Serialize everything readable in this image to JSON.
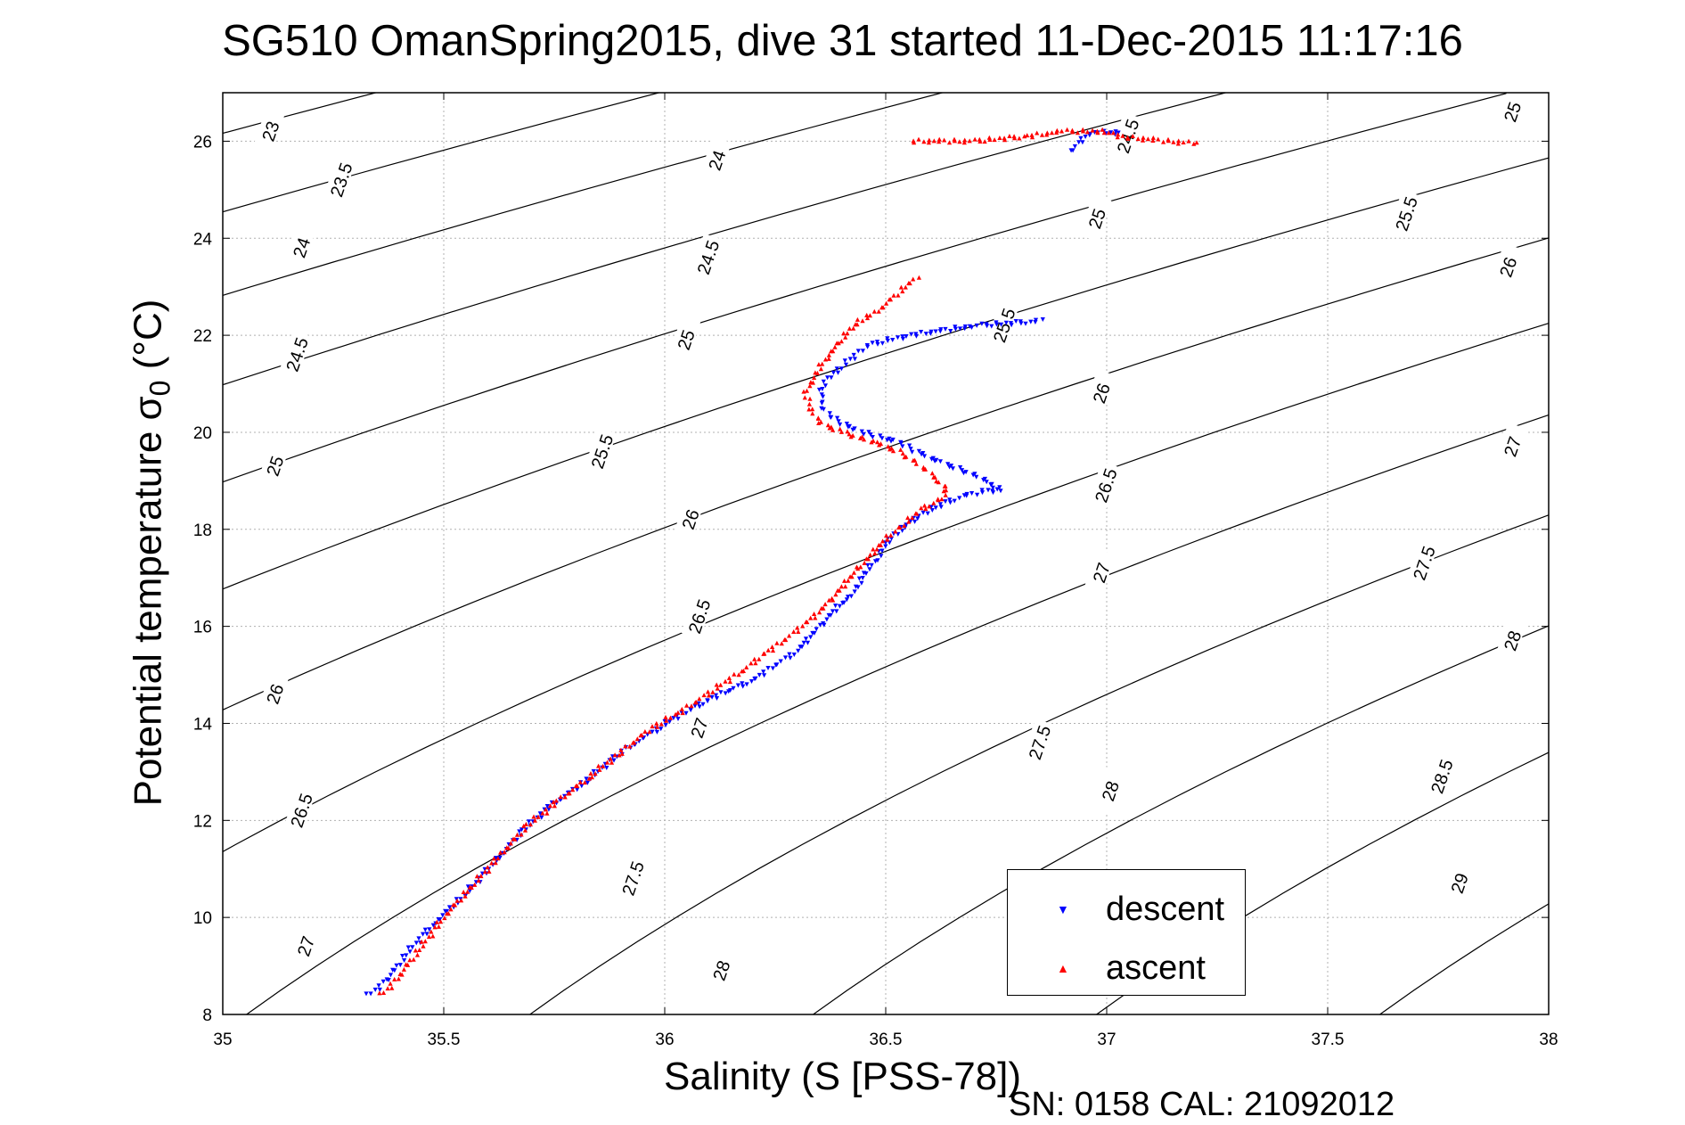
{
  "chart_data": {
    "type": "scatter",
    "title": "SG510 OmanSpring2015, dive 31 started 11-Dec-2015 11:17:16",
    "xlabel": "Salinity (S [PSS-78])",
    "ylabel": "Potential temperature σ0 (°C)",
    "xlim": [
      35,
      38
    ],
    "ylim": [
      8,
      27
    ],
    "x_ticks": [
      "35",
      "35.5",
      "36",
      "36.5",
      "37",
      "37.5",
      "38"
    ],
    "y_ticks": [
      "8",
      "10",
      "12",
      "14",
      "16",
      "18",
      "20",
      "22",
      "24",
      "26"
    ],
    "grid": true,
    "legend_position": "bottom-right",
    "footnote": "SN: 0158  CAL: 21092012",
    "density_contours": [
      23,
      23.5,
      24,
      24.5,
      25,
      25.5,
      26,
      26.5,
      27,
      27.5,
      28,
      28.5,
      29
    ],
    "contour_labels": [
      {
        "text": "23",
        "x": 35.11,
        "y": 26.2
      },
      {
        "text": "23.5",
        "x": 35.27,
        "y": 25.2
      },
      {
        "text": "24",
        "x": 35.18,
        "y": 23.8
      },
      {
        "text": "24.5",
        "x": 35.17,
        "y": 21.6
      },
      {
        "text": "25",
        "x": 35.12,
        "y": 19.3
      },
      {
        "text": "25.5",
        "x": 35.86,
        "y": 19.6
      },
      {
        "text": "26",
        "x": 35.12,
        "y": 14.6
      },
      {
        "text": "26.5",
        "x": 35.18,
        "y": 12.2
      },
      {
        "text": "27",
        "x": 35.19,
        "y": 9.4
      },
      {
        "text": "24",
        "x": 36.12,
        "y": 25.6
      },
      {
        "text": "24.5",
        "x": 36.1,
        "y": 23.6
      },
      {
        "text": "25",
        "x": 36.05,
        "y": 21.9
      },
      {
        "text": "26",
        "x": 36.06,
        "y": 18.2
      },
      {
        "text": "26.5",
        "x": 36.08,
        "y": 16.2
      },
      {
        "text": "27",
        "x": 36.08,
        "y": 13.9
      },
      {
        "text": "27.5",
        "x": 35.93,
        "y": 10.8
      },
      {
        "text": "28",
        "x": 36.13,
        "y": 8.9
      },
      {
        "text": "24.5",
        "x": 37.05,
        "y": 26.1
      },
      {
        "text": "25",
        "x": 36.98,
        "y": 24.4
      },
      {
        "text": "25.5",
        "x": 36.77,
        "y": 22.2
      },
      {
        "text": "26",
        "x": 36.99,
        "y": 20.8
      },
      {
        "text": "26.5",
        "x": 37.0,
        "y": 18.9
      },
      {
        "text": "27",
        "x": 36.99,
        "y": 17.1
      },
      {
        "text": "27.5",
        "x": 36.85,
        "y": 13.6
      },
      {
        "text": "28",
        "x": 37.01,
        "y": 12.6
      },
      {
        "text": "25",
        "x": 37.92,
        "y": 26.6
      },
      {
        "text": "25.5",
        "x": 37.68,
        "y": 24.5
      },
      {
        "text": "26",
        "x": 37.91,
        "y": 23.4
      },
      {
        "text": "27",
        "x": 37.92,
        "y": 19.7
      },
      {
        "text": "27.5",
        "x": 37.72,
        "y": 17.3
      },
      {
        "text": "28",
        "x": 37.92,
        "y": 15.7
      },
      {
        "text": "28.5",
        "x": 37.76,
        "y": 12.9
      },
      {
        "text": "29",
        "x": 37.8,
        "y": 10.7
      }
    ],
    "series": [
      {
        "name": "descent",
        "color": "#0000ff",
        "marker": "triangle-down",
        "x": [
          35.33,
          35.37,
          35.42,
          35.48,
          35.55,
          35.62,
          35.68,
          35.74,
          35.82,
          35.9,
          35.97,
          36.02,
          36.06,
          36.1,
          36.15,
          36.2,
          36.25,
          36.3,
          36.33,
          36.36,
          36.39,
          36.42,
          36.44,
          36.46,
          36.48,
          36.5,
          36.52,
          36.55,
          36.58,
          36.62,
          36.68,
          36.73,
          36.76,
          36.73,
          36.68,
          36.62,
          36.57,
          36.53,
          36.49,
          36.45,
          36.42,
          36.38,
          36.36,
          36.35,
          36.36,
          36.38,
          36.42,
          36.46,
          36.55,
          36.7,
          36.85,
          36.92,
          36.95,
          36.98,
          37.0,
          37.03
        ],
        "y": [
          8.4,
          8.7,
          9.3,
          9.9,
          10.5,
          11.2,
          11.8,
          12.3,
          12.8,
          13.4,
          13.8,
          14.1,
          14.3,
          14.5,
          14.7,
          14.9,
          15.2,
          15.5,
          15.8,
          16.1,
          16.4,
          16.6,
          16.9,
          17.2,
          17.4,
          17.7,
          17.9,
          18.1,
          18.3,
          18.5,
          18.7,
          18.8,
          18.8,
          19.0,
          19.2,
          19.4,
          19.6,
          19.8,
          19.9,
          20.0,
          20.1,
          20.3,
          20.5,
          20.8,
          21.0,
          21.2,
          21.5,
          21.8,
          22.0,
          22.2,
          22.3,
          25.8,
          26.1,
          26.2,
          26.2,
          26.15
        ]
      },
      {
        "name": "ascent",
        "color": "#ff0000",
        "marker": "triangle-up",
        "x": [
          35.36,
          35.4,
          35.45,
          35.5,
          35.57,
          35.63,
          35.69,
          35.76,
          35.83,
          35.9,
          35.97,
          36.03,
          36.08,
          36.13,
          36.18,
          36.22,
          36.27,
          36.31,
          36.35,
          36.38,
          36.41,
          36.44,
          36.47,
          36.5,
          36.54,
          36.58,
          36.62,
          36.64,
          36.62,
          36.58,
          36.53,
          36.47,
          36.4,
          36.35,
          36.33,
          36.32,
          36.33,
          36.35,
          36.37,
          36.4,
          36.42,
          36.44,
          36.47,
          36.57,
          36.56,
          36.7,
          36.82,
          36.9,
          36.96,
          37.0,
          37.02,
          37.2
        ],
        "y": [
          8.4,
          8.8,
          9.4,
          10.0,
          10.7,
          11.3,
          11.9,
          12.4,
          12.9,
          13.4,
          13.9,
          14.2,
          14.5,
          14.8,
          15.1,
          15.4,
          15.7,
          16.0,
          16.3,
          16.6,
          16.9,
          17.2,
          17.5,
          17.8,
          18.1,
          18.4,
          18.6,
          18.8,
          19.0,
          19.3,
          19.6,
          19.8,
          20.0,
          20.2,
          20.5,
          20.8,
          21.0,
          21.3,
          21.6,
          21.9,
          22.1,
          22.3,
          22.4,
          23.2,
          26.0,
          26.0,
          26.1,
          26.2,
          26.2,
          26.2,
          26.1,
          25.95
        ]
      }
    ]
  }
}
